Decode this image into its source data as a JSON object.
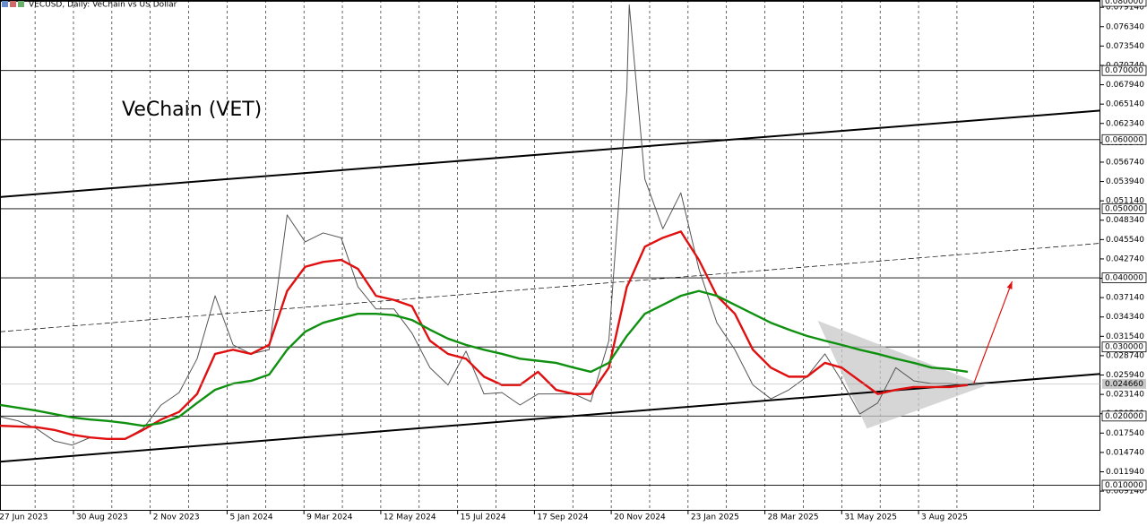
{
  "chart_data": {
    "type": "line",
    "header": "VECUSD, Daily:  VeChain vs US Dollar",
    "title": "VeChain (VET)",
    "xlim": [
      2.8,
      919.5
    ],
    "ylim": [
      0.0063,
      0.0802
    ],
    "xticks": [
      {
        "value": 0,
        "label": "27 Jun 2023"
      },
      {
        "value": 64,
        "label": "30 Aug 2023"
      },
      {
        "value": 128,
        "label": "2 Nov 2023"
      },
      {
        "value": 192,
        "label": "5 Jan 2024"
      },
      {
        "value": 256,
        "label": "9 Mar 2024"
      },
      {
        "value": 320,
        "label": "12 May 2024"
      },
      {
        "value": 384,
        "label": "15 Jul 2024"
      },
      {
        "value": 448,
        "label": "17 Sep 2024"
      },
      {
        "value": 512,
        "label": "20 Nov 2024"
      },
      {
        "value": 576,
        "label": "23 Jan 2025"
      },
      {
        "value": 640,
        "label": "28 Mar 2025"
      },
      {
        "value": 704,
        "label": "31 May 2025"
      },
      {
        "value": 768,
        "label": "3 Aug 2025"
      }
    ],
    "xgrid_minor": [
      32,
      96,
      160,
      224,
      288,
      352,
      416,
      480,
      544,
      608,
      672,
      736,
      800,
      864
    ],
    "yticks": [
      {
        "value": 0.07914,
        "label": "0.079140"
      },
      {
        "value": 0.07634,
        "label": "0.076340"
      },
      {
        "value": 0.07354,
        "label": "0.073540"
      },
      {
        "value": 0.07074,
        "label": "0.070740"
      },
      {
        "value": 0.06794,
        "label": "0.067940"
      },
      {
        "value": 0.06514,
        "label": "0.065140"
      },
      {
        "value": 0.06234,
        "label": "0.062340"
      },
      {
        "value": 0.05954,
        "label": "0.059540"
      },
      {
        "value": 0.05674,
        "label": "0.056740"
      },
      {
        "value": 0.05394,
        "label": "0.053940"
      },
      {
        "value": 0.05114,
        "label": "0.051140"
      },
      {
        "value": 0.04834,
        "label": "0.048340"
      },
      {
        "value": 0.04554,
        "label": "0.045540"
      },
      {
        "value": 0.04274,
        "label": "0.042740"
      },
      {
        "value": 0.03994,
        "label": "0.039940"
      },
      {
        "value": 0.03714,
        "label": "0.037140"
      },
      {
        "value": 0.03434,
        "label": "0.034340"
      },
      {
        "value": 0.03154,
        "label": "0.031540"
      },
      {
        "value": 0.02874,
        "label": "0.028740"
      },
      {
        "value": 0.02594,
        "label": "0.025940"
      },
      {
        "value": 0.02314,
        "label": "0.023140"
      },
      {
        "value": 0.02034,
        "label": "0.020340"
      },
      {
        "value": 0.01754,
        "label": "0.017540"
      },
      {
        "value": 0.01474,
        "label": "0.014740"
      },
      {
        "value": 0.01194,
        "label": "0.011940"
      },
      {
        "value": 0.00914,
        "label": "0.009140"
      }
    ],
    "levels": [
      {
        "value": 0.08,
        "label": "0.080000"
      },
      {
        "value": 0.07,
        "label": "0.070000"
      },
      {
        "value": 0.06,
        "label": "0.060000"
      },
      {
        "value": 0.05,
        "label": "0.050000"
      },
      {
        "value": 0.04,
        "label": "0.040000"
      },
      {
        "value": 0.03,
        "label": "0.030000"
      },
      {
        "value": 0.02,
        "label": "0.020000"
      },
      {
        "value": 0.01,
        "label": "0.010000"
      }
    ],
    "last_price": {
      "value": 0.02466,
      "label": "0.024660"
    },
    "x": [
      3,
      18,
      33,
      48,
      63,
      78,
      92,
      107,
      122,
      137,
      152,
      167,
      182,
      197,
      212,
      227,
      242,
      257,
      272,
      287,
      301,
      316,
      331,
      346,
      361,
      376,
      391,
      406,
      421,
      436,
      451,
      466,
      481,
      495,
      510,
      525,
      527,
      540,
      555,
      570,
      585,
      600,
      615,
      630,
      645,
      660,
      675,
      690,
      704,
      719,
      734,
      749,
      764,
      779,
      794,
      809
    ],
    "series": [
      {
        "color": "#555555",
        "values": [
          0.0199,
          0.0193,
          0.0182,
          0.0164,
          0.0158,
          0.0169,
          0.0167,
          0.0167,
          0.0182,
          0.0216,
          0.0234,
          0.0283,
          0.0374,
          0.0303,
          0.029,
          0.0296,
          0.0491,
          0.0452,
          0.0465,
          0.0458,
          0.0387,
          0.0355,
          0.0355,
          0.032,
          0.027,
          0.0245,
          0.0294,
          0.0232,
          0.0234,
          0.0216,
          0.0232,
          0.0232,
          0.0232,
          0.0221,
          0.0309,
          0.0672,
          0.0795,
          0.0543,
          0.0471,
          0.0523,
          0.0413,
          0.0335,
          0.0296,
          0.0245,
          0.0225,
          0.0238,
          0.0257,
          0.029,
          0.0251,
          0.0203,
          0.0219,
          0.027,
          0.0251,
          0.0247,
          0.0247,
          0.0245
        ]
      },
      {
        "color": "#e01010",
        "values": [
          0.0186,
          0.0185,
          0.0184,
          0.018,
          0.0173,
          0.0169,
          0.0167,
          0.0167,
          0.018,
          0.0195,
          0.0206,
          0.0232,
          0.029,
          0.0296,
          0.029,
          0.0303,
          0.0381,
          0.0416,
          0.0423,
          0.0426,
          0.0413,
          0.0374,
          0.0368,
          0.0359,
          0.0309,
          0.029,
          0.0283,
          0.0257,
          0.0245,
          0.0245,
          0.0264,
          0.0238,
          0.0232,
          0.0232,
          0.027,
          0.0387,
          0.0394,
          0.0445,
          0.0458,
          0.0467,
          0.0426,
          0.0374,
          0.0348,
          0.0296,
          0.027,
          0.0257,
          0.0257,
          0.0277,
          0.027,
          0.0251,
          0.0232,
          0.0238,
          0.0242,
          0.0242,
          0.0242,
          0.0245
        ]
      },
      {
        "color": "#109010",
        "values": [
          0.0216,
          0.0212,
          0.0208,
          0.0203,
          0.0198,
          0.0195,
          0.0193,
          0.019,
          0.0186,
          0.019,
          0.0199,
          0.0219,
          0.0238,
          0.0247,
          0.0251,
          0.026,
          0.0296,
          0.0322,
          0.0335,
          0.0342,
          0.0348,
          0.0348,
          0.0346,
          0.0339,
          0.0325,
          0.0312,
          0.0303,
          0.0296,
          0.029,
          0.0283,
          0.028,
          0.0277,
          0.027,
          0.0264,
          0.0277,
          0.0316,
          0.032,
          0.0348,
          0.0361,
          0.0374,
          0.0381,
          0.0374,
          0.0361,
          0.0348,
          0.0335,
          0.0325,
          0.0316,
          0.0309,
          0.0303,
          0.0296,
          0.029,
          0.0283,
          0.0277,
          0.027,
          0.0268,
          0.0264
        ]
      }
    ],
    "trendlines": [
      {
        "x": [
          2.8,
          919.5
        ],
        "values": [
          0.0517,
          0.0642
        ],
        "style": "solid"
      },
      {
        "x": [
          2.8,
          919.5
        ],
        "values": [
          0.0134,
          0.0261
        ],
        "style": "solid"
      },
      {
        "x": [
          2.8,
          919.5
        ],
        "values": [
          0.0322,
          0.045
        ],
        "style": "dashed"
      }
    ],
    "triangle": {
      "x": [
        684,
        824,
        725
      ],
      "values": [
        0.0338,
        0.0244,
        0.0182
      ],
      "color": "#c8c8c8"
    },
    "arrow": {
      "x": [
        814,
        846
      ],
      "values": [
        0.0247,
        0.0395
      ],
      "color": "#e01010"
    }
  }
}
